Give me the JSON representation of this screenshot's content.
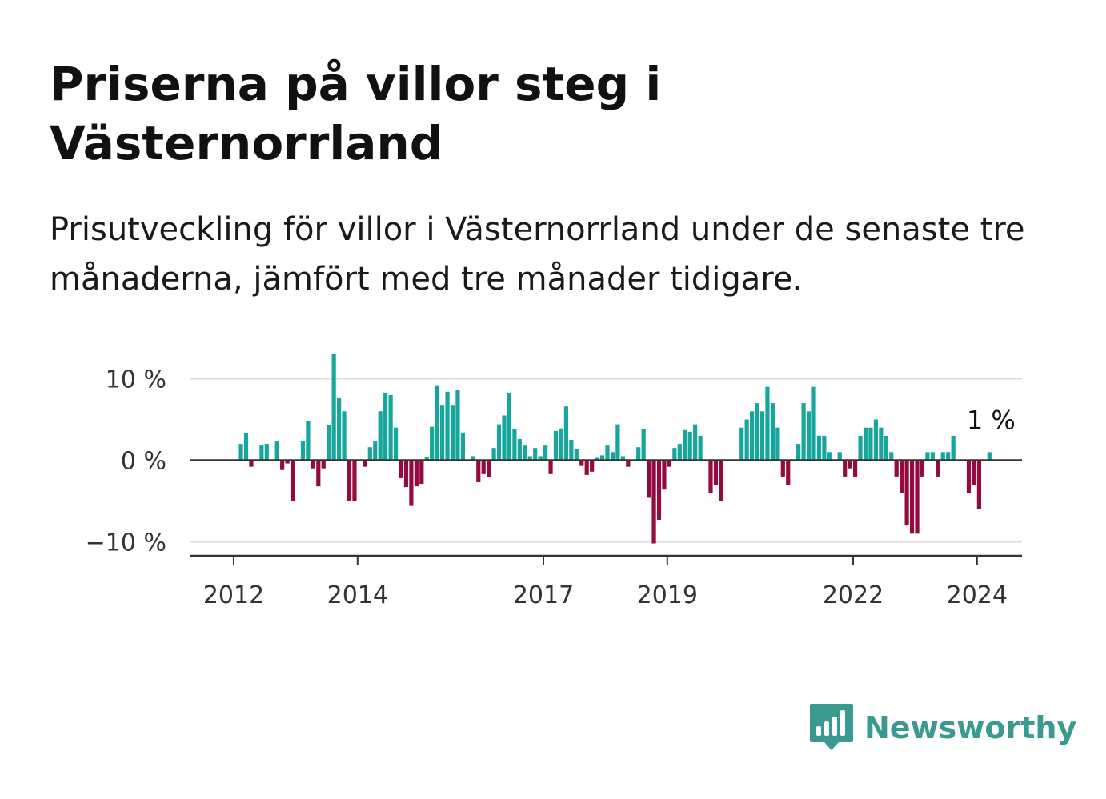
{
  "title": "Priserna på villor steg i Västernorrland",
  "subtitle": "Prisutveckling för villor i Västernorrland under de senaste tre månaderna, jämfört med tre månader tidigare.",
  "brand": {
    "name": "Newsworthy",
    "color": "#3b9a8f",
    "logo_icon": "bar-chart-speech-bubble-icon"
  },
  "colors": {
    "positive": "#17a69c",
    "negative": "#930a3e",
    "gridline": "#dddddd",
    "zero_line": "#333333"
  },
  "chart_data": {
    "type": "bar",
    "x_start": "2012-01",
    "x_tick_labels": [
      "2012",
      "2014",
      "2017",
      "2019",
      "2022",
      "2024"
    ],
    "y_tick_labels": [
      "10 %",
      "0 %",
      "−10 %"
    ],
    "y_ticks": [
      10,
      0,
      -10
    ],
    "ylim": [
      -11.5,
      13.5
    ],
    "grid": true,
    "last_value_label": "1 %",
    "values": [
      0,
      2,
      3.3,
      -0.8,
      0,
      1.8,
      2,
      0,
      2.3,
      -1.2,
      -0.4,
      -5,
      0,
      2.3,
      4.8,
      -1,
      -3.2,
      -1,
      4.3,
      13,
      7.7,
      6,
      -5,
      -5,
      0,
      -0.8,
      1.6,
      2.3,
      6,
      8.3,
      8,
      4,
      -2.2,
      -3.3,
      -5.6,
      -3.2,
      -2.9,
      0.4,
      4.1,
      9.2,
      6.7,
      8.4,
      6.7,
      8.6,
      3.4,
      0,
      0.5,
      -2.7,
      -1.7,
      -2.1,
      1.5,
      4.4,
      5.5,
      8.3,
      3.8,
      2.6,
      1.8,
      0.5,
      1.5,
      0.5,
      1.8,
      -1.7,
      3.6,
      3.9,
      6.6,
      2.5,
      1.4,
      -0.7,
      -1.8,
      -1.4,
      0.3,
      0.6,
      1.8,
      1,
      4.4,
      0.5,
      -0.8,
      0,
      1.6,
      3.8,
      -4.6,
      -10.2,
      -7.3,
      -3.6,
      -0.8,
      1.5,
      2,
      3.7,
      3.5,
      4.4,
      3,
      0,
      -4,
      -3,
      -5,
      0,
      0,
      0,
      4,
      5,
      6,
      7,
      6,
      9,
      7,
      4,
      -2,
      -3,
      0,
      2,
      7,
      6,
      9,
      3,
      3,
      1,
      0,
      1,
      -2,
      -1,
      -2,
      3,
      4,
      4,
      5,
      4,
      3,
      1,
      -2,
      -4,
      -8,
      -9,
      -9,
      -2,
      1,
      1,
      -2,
      1,
      1,
      3,
      0,
      0,
      -4,
      -3,
      -6,
      0,
      1
    ]
  }
}
